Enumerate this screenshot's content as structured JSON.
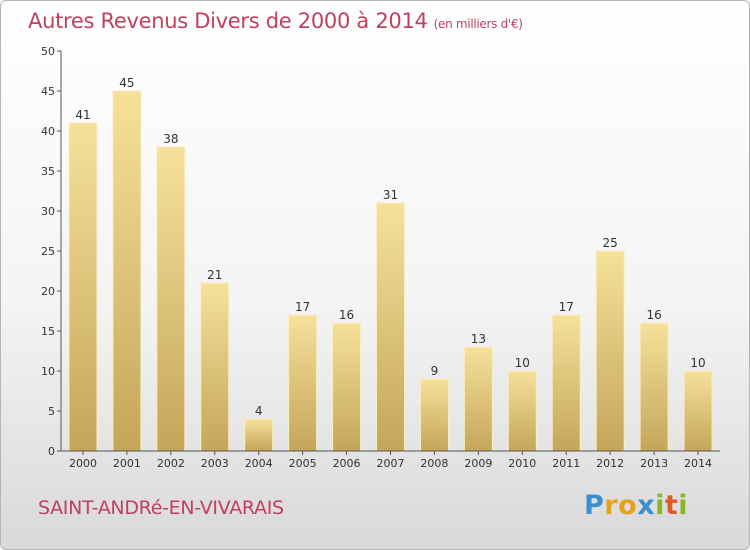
{
  "title": "Autres Revenus Divers de 2000 à 2014",
  "unit": "(en milliers d'€)",
  "commune": "SAINT-ANDRé-EN-VIVARAIS",
  "logo": {
    "letters": [
      "P",
      "r",
      "o",
      "x",
      "i",
      "t",
      "i"
    ]
  },
  "colors": {
    "accent": "#c0405e",
    "bar_light": "#f6e19b",
    "bar_dark": "#c4a65a"
  },
  "chart_data": {
    "type": "bar",
    "title": "Autres Revenus Divers de 2000 à 2014",
    "xlabel": "",
    "ylabel": "",
    "categories": [
      "2000",
      "2001",
      "2002",
      "2003",
      "2004",
      "2005",
      "2006",
      "2007",
      "2008",
      "2009",
      "2010",
      "2011",
      "2012",
      "2013",
      "2014"
    ],
    "values": [
      41,
      45,
      38,
      21,
      4,
      17,
      16,
      31,
      9,
      13,
      10,
      17,
      25,
      16,
      10
    ],
    "ylim": [
      0,
      50
    ],
    "yticks": [
      0,
      5,
      10,
      15,
      20,
      25,
      30,
      35,
      40,
      45,
      50
    ],
    "grid": false,
    "legend": "none"
  }
}
